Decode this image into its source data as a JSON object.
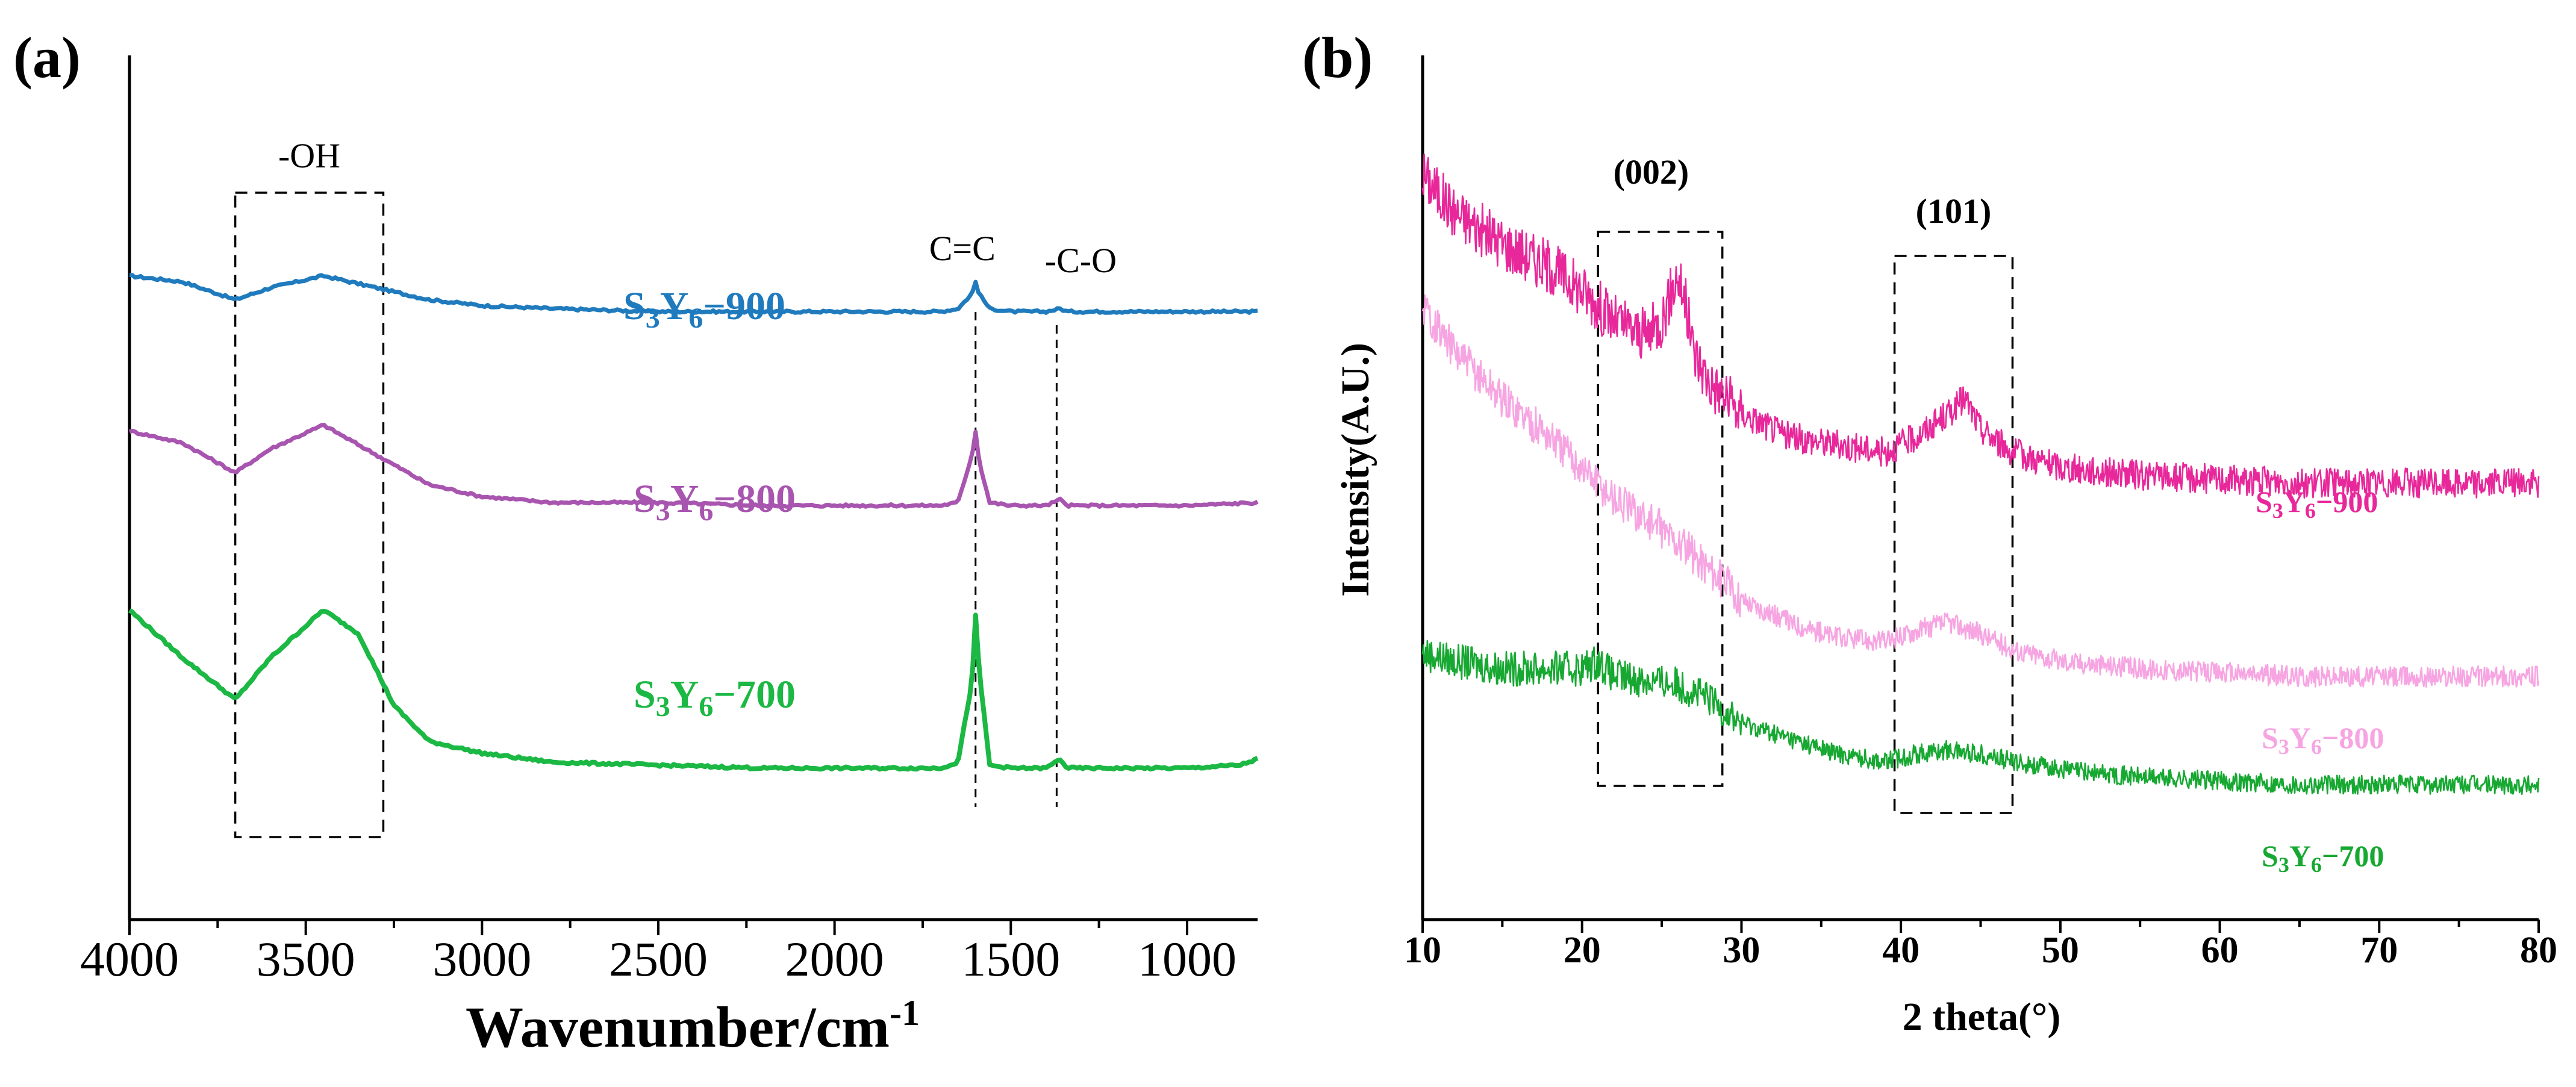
{
  "chart_data": [
    {
      "panel_label": "(a)",
      "type": "line",
      "xlabel": "Wavenumber/cm",
      "xlabel_sup": "-1",
      "ylabel": "",
      "xlim": [
        4000,
        800
      ],
      "x_ticks": [
        4000,
        3500,
        3000,
        2500,
        2000,
        1500,
        1000
      ],
      "x_tick_labels": [
        "4000",
        "3500",
        "3000",
        "2500",
        "2000",
        "1500",
        "1000"
      ],
      "grid": false,
      "annotations": [
        {
          "text": "-OH",
          "x_range": [
            3700,
            3280
          ]
        },
        {
          "text": "C=C",
          "x": 1600
        },
        {
          "text": "-C-O",
          "x": 1370
        }
      ],
      "series": [
        {
          "name": "S3Y6-900",
          "label_main1": "S",
          "label_sub1": "3",
          "label_main2": "Y",
          "label_sub2": "6",
          "label_rest": "−900",
          "color": "#1f7bbd",
          "x": [
            4000,
            3850,
            3700,
            3600,
            3450,
            3300,
            3150,
            3000,
            2800,
            2500,
            2200,
            2000,
            1800,
            1700,
            1650,
            1610,
            1600,
            1590,
            1560,
            1500,
            1400,
            1360,
            1340,
            1200,
            1000,
            800
          ],
          "values": [
            0.78,
            0.77,
            0.74,
            0.76,
            0.78,
            0.76,
            0.74,
            0.73,
            0.725,
            0.72,
            0.72,
            0.72,
            0.72,
            0.72,
            0.725,
            0.75,
            0.77,
            0.75,
            0.725,
            0.72,
            0.72,
            0.725,
            0.72,
            0.72,
            0.72,
            0.72
          ]
        },
        {
          "name": "S3Y6-800",
          "label_main1": "S",
          "label_sub1": "3",
          "label_main2": "Y",
          "label_sub2": "6",
          "label_rest": "−800",
          "color": "#a855b0",
          "x": [
            4000,
            3850,
            3700,
            3600,
            3450,
            3300,
            3150,
            3000,
            2800,
            2500,
            2200,
            2000,
            1800,
            1700,
            1650,
            1610,
            1600,
            1590,
            1560,
            1500,
            1400,
            1360,
            1340,
            1200,
            1000,
            800
          ],
          "values": [
            0.52,
            0.5,
            0.45,
            0.49,
            0.53,
            0.48,
            0.43,
            0.41,
            0.4,
            0.4,
            0.395,
            0.395,
            0.395,
            0.395,
            0.4,
            0.48,
            0.52,
            0.47,
            0.4,
            0.395,
            0.395,
            0.405,
            0.395,
            0.395,
            0.395,
            0.4
          ]
        },
        {
          "name": "S3Y6-700",
          "label_main1": "S",
          "label_sub1": "3",
          "label_main2": "Y",
          "label_sub2": "6",
          "label_rest": "−700",
          "color": "#1cb844",
          "x": [
            4000,
            3850,
            3700,
            3600,
            3450,
            3350,
            3250,
            3150,
            3000,
            2800,
            2500,
            2200,
            2000,
            1800,
            1700,
            1650,
            1610,
            1600,
            1590,
            1560,
            1500,
            1400,
            1360,
            1340,
            1200,
            1000,
            850,
            800
          ],
          "values": [
            0.22,
            0.14,
            0.07,
            0.14,
            0.22,
            0.18,
            0.06,
            0.0,
            -0.02,
            -0.035,
            -0.04,
            -0.045,
            -0.045,
            -0.045,
            -0.045,
            -0.035,
            0.1,
            0.21,
            0.12,
            -0.04,
            -0.045,
            -0.045,
            -0.03,
            -0.045,
            -0.045,
            -0.045,
            -0.04,
            -0.03
          ]
        }
      ]
    },
    {
      "panel_label": "(b)",
      "type": "line",
      "xlabel": "2 theta(°)",
      "ylabel": "Intensity(A.U.)",
      "xlim": [
        10,
        80
      ],
      "x_ticks": [
        10,
        20,
        30,
        40,
        50,
        60,
        70,
        80
      ],
      "x_tick_labels": [
        "10",
        "20",
        "30",
        "40",
        "50",
        "60",
        "70",
        "80"
      ],
      "grid": false,
      "annotations": [
        {
          "text": "(002)",
          "x_range": [
            21,
            28.8
          ]
        },
        {
          "text": "(101)",
          "x_range": [
            39.6,
            47
          ]
        }
      ],
      "series": [
        {
          "name": "S3Y6-900",
          "label_main1": "S",
          "label_sub1": "3",
          "label_main2": "Y",
          "label_sub2": "6",
          "label_rest": "−900",
          "color": "#e8289a",
          "x": [
            10,
            12,
            15,
            18,
            20,
            22,
            24,
            25,
            26,
            26.5,
            27,
            28,
            30,
            33,
            36,
            39,
            41,
            43,
            44,
            45,
            47,
            50,
            55,
            60,
            65,
            70,
            75,
            80
          ],
          "values": [
            0.95,
            0.9,
            0.86,
            0.83,
            0.8,
            0.76,
            0.74,
            0.76,
            0.82,
            0.78,
            0.72,
            0.68,
            0.64,
            0.61,
            0.6,
            0.59,
            0.61,
            0.64,
            0.66,
            0.62,
            0.59,
            0.57,
            0.56,
            0.555,
            0.55,
            0.55,
            0.55,
            0.55
          ]
        },
        {
          "name": "S3Y6-800",
          "label_main1": "S",
          "label_sub1": "3",
          "label_main2": "Y",
          "label_sub2": "6",
          "label_rest": "−800",
          "color": "#f7a5e2",
          "x": [
            10,
            12,
            15,
            18,
            20,
            22,
            25,
            28,
            30,
            33,
            36,
            39,
            41,
            43,
            45,
            47,
            50,
            55,
            60,
            65,
            70,
            75,
            80
          ],
          "values": [
            0.78,
            0.72,
            0.66,
            0.61,
            0.57,
            0.53,
            0.49,
            0.44,
            0.4,
            0.37,
            0.35,
            0.345,
            0.36,
            0.37,
            0.355,
            0.335,
            0.32,
            0.31,
            0.305,
            0.3,
            0.3,
            0.3,
            0.3
          ]
        },
        {
          "name": "S3Y6-700",
          "label_main1": "S",
          "label_sub1": "3",
          "label_main2": "Y",
          "label_sub2": "6",
          "label_rest": "−700",
          "color": "#17a832",
          "x": [
            10,
            12,
            15,
            18,
            20,
            21,
            22,
            24,
            26,
            28,
            30,
            33,
            36,
            39,
            41,
            43,
            45,
            47,
            50,
            55,
            60,
            65,
            70,
            75,
            80
          ],
          "values": [
            0.33,
            0.32,
            0.31,
            0.31,
            0.31,
            0.32,
            0.3,
            0.295,
            0.29,
            0.27,
            0.24,
            0.22,
            0.2,
            0.19,
            0.2,
            0.205,
            0.2,
            0.19,
            0.18,
            0.17,
            0.165,
            0.16,
            0.16,
            0.16,
            0.16
          ]
        }
      ]
    }
  ]
}
